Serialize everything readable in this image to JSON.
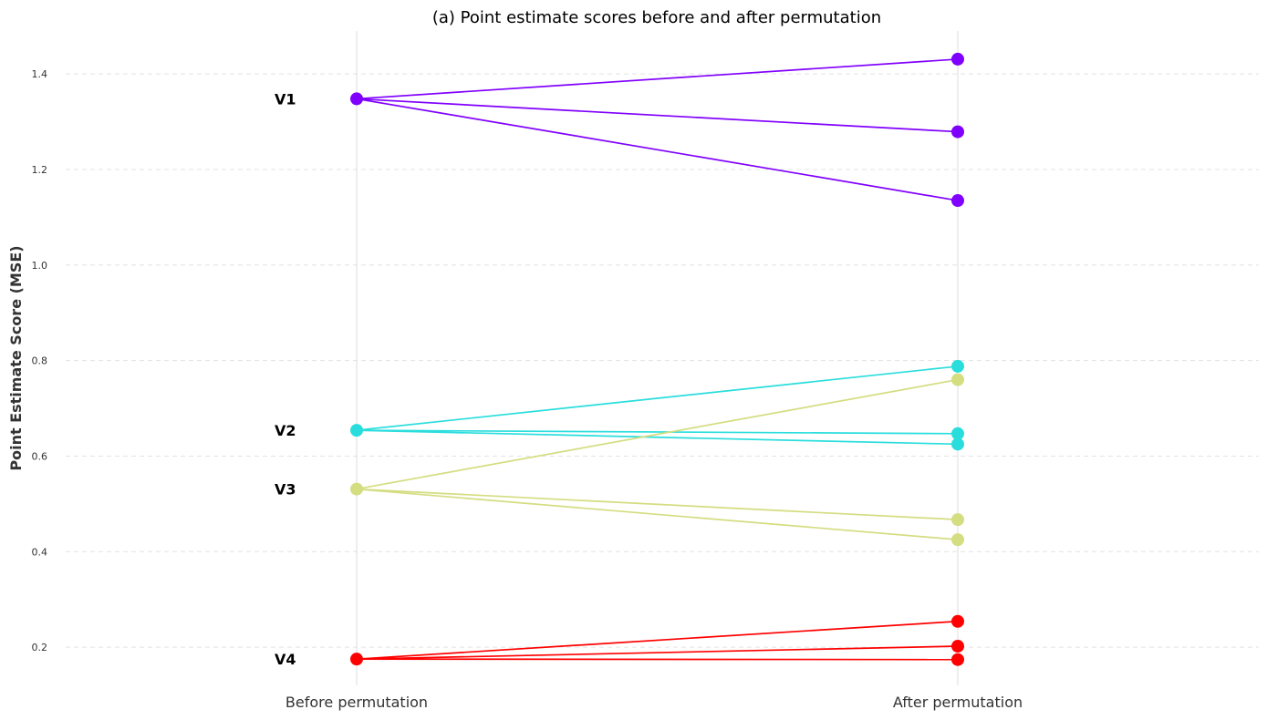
{
  "chart_data": {
    "type": "line",
    "title": "(a) Point estimate scores before and after permutation",
    "xlabel": "",
    "ylabel": "Point Estimate Score (MSE)",
    "categories": [
      "Before permutation",
      "After permutation"
    ],
    "ylim": [
      0.12,
      1.49
    ],
    "yticks": [
      0.2,
      0.4,
      0.6,
      0.8,
      1.0,
      1.2,
      1.4
    ],
    "ytick_labels": [
      "0.2",
      "0.4",
      "0.6",
      "0.8",
      "1.0",
      "1.2",
      "1.4"
    ],
    "grid": "horizontal dashed",
    "groups": [
      {
        "label": "V1",
        "color": "#8000ff",
        "before": 1.348,
        "after": [
          1.431,
          1.279,
          1.135
        ]
      },
      {
        "label": "V2",
        "color": "#2adddd",
        "before": 0.654,
        "after": [
          0.788,
          0.647,
          0.625
        ]
      },
      {
        "label": "V3",
        "color": "#d4dd80",
        "before": 0.531,
        "after": [
          0.76,
          0.467,
          0.425
        ]
      },
      {
        "label": "V4",
        "color": "#ff0000",
        "before": 0.175,
        "after": [
          0.254,
          0.202,
          0.174
        ]
      }
    ]
  }
}
